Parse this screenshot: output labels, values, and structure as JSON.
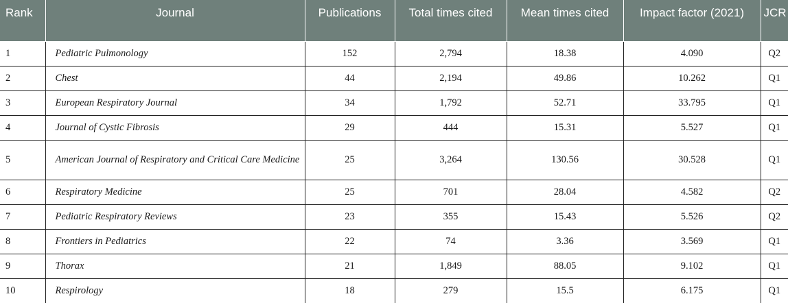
{
  "headers": {
    "rank": "Rank",
    "journal": "Journal",
    "publications": "Publications",
    "total_cited": "Total times cited",
    "mean_cited": "Mean times cited",
    "impact_factor": "Impact factor (2021)",
    "jcr": "JCR"
  },
  "rows": [
    {
      "rank": "1",
      "journal": "Pediatric Pulmonology",
      "publications": "152",
      "total_cited": "2,794",
      "mean_cited": "18.38",
      "impact_factor": "4.090",
      "jcr": "Q2"
    },
    {
      "rank": "2",
      "journal": "Chest",
      "publications": "44",
      "total_cited": "2,194",
      "mean_cited": "49.86",
      "impact_factor": "10.262",
      "jcr": "Q1"
    },
    {
      "rank": "3",
      "journal": "European Respiratory Journal",
      "publications": "34",
      "total_cited": "1,792",
      "mean_cited": "52.71",
      "impact_factor": "33.795",
      "jcr": "Q1"
    },
    {
      "rank": "4",
      "journal": "Journal of Cystic Fibrosis",
      "publications": "29",
      "total_cited": "444",
      "mean_cited": "15.31",
      "impact_factor": "5.527",
      "jcr": "Q1"
    },
    {
      "rank": "5",
      "journal": "American Journal of Respiratory and Critical Care Medicine",
      "publications": "25",
      "total_cited": "3,264",
      "mean_cited": "130.56",
      "impact_factor": "30.528",
      "jcr": "Q1"
    },
    {
      "rank": "6",
      "journal": "Respiratory Medicine",
      "publications": "25",
      "total_cited": "701",
      "mean_cited": "28.04",
      "impact_factor": "4.582",
      "jcr": "Q2"
    },
    {
      "rank": "7",
      "journal": "Pediatric Respiratory Reviews",
      "publications": "23",
      "total_cited": "355",
      "mean_cited": "15.43",
      "impact_factor": "5.526",
      "jcr": "Q2"
    },
    {
      "rank": "8",
      "journal": "Frontiers in Pediatrics",
      "publications": "22",
      "total_cited": "74",
      "mean_cited": "3.36",
      "impact_factor": "3.569",
      "jcr": "Q1"
    },
    {
      "rank": "9",
      "journal": "Thorax",
      "publications": "21",
      "total_cited": "1,849",
      "mean_cited": "88.05",
      "impact_factor": "9.102",
      "jcr": "Q1"
    },
    {
      "rank": "10",
      "journal": "Respirology",
      "publications": "18",
      "total_cited": "279",
      "mean_cited": "15.5",
      "impact_factor": "6.175",
      "jcr": "Q1"
    }
  ]
}
